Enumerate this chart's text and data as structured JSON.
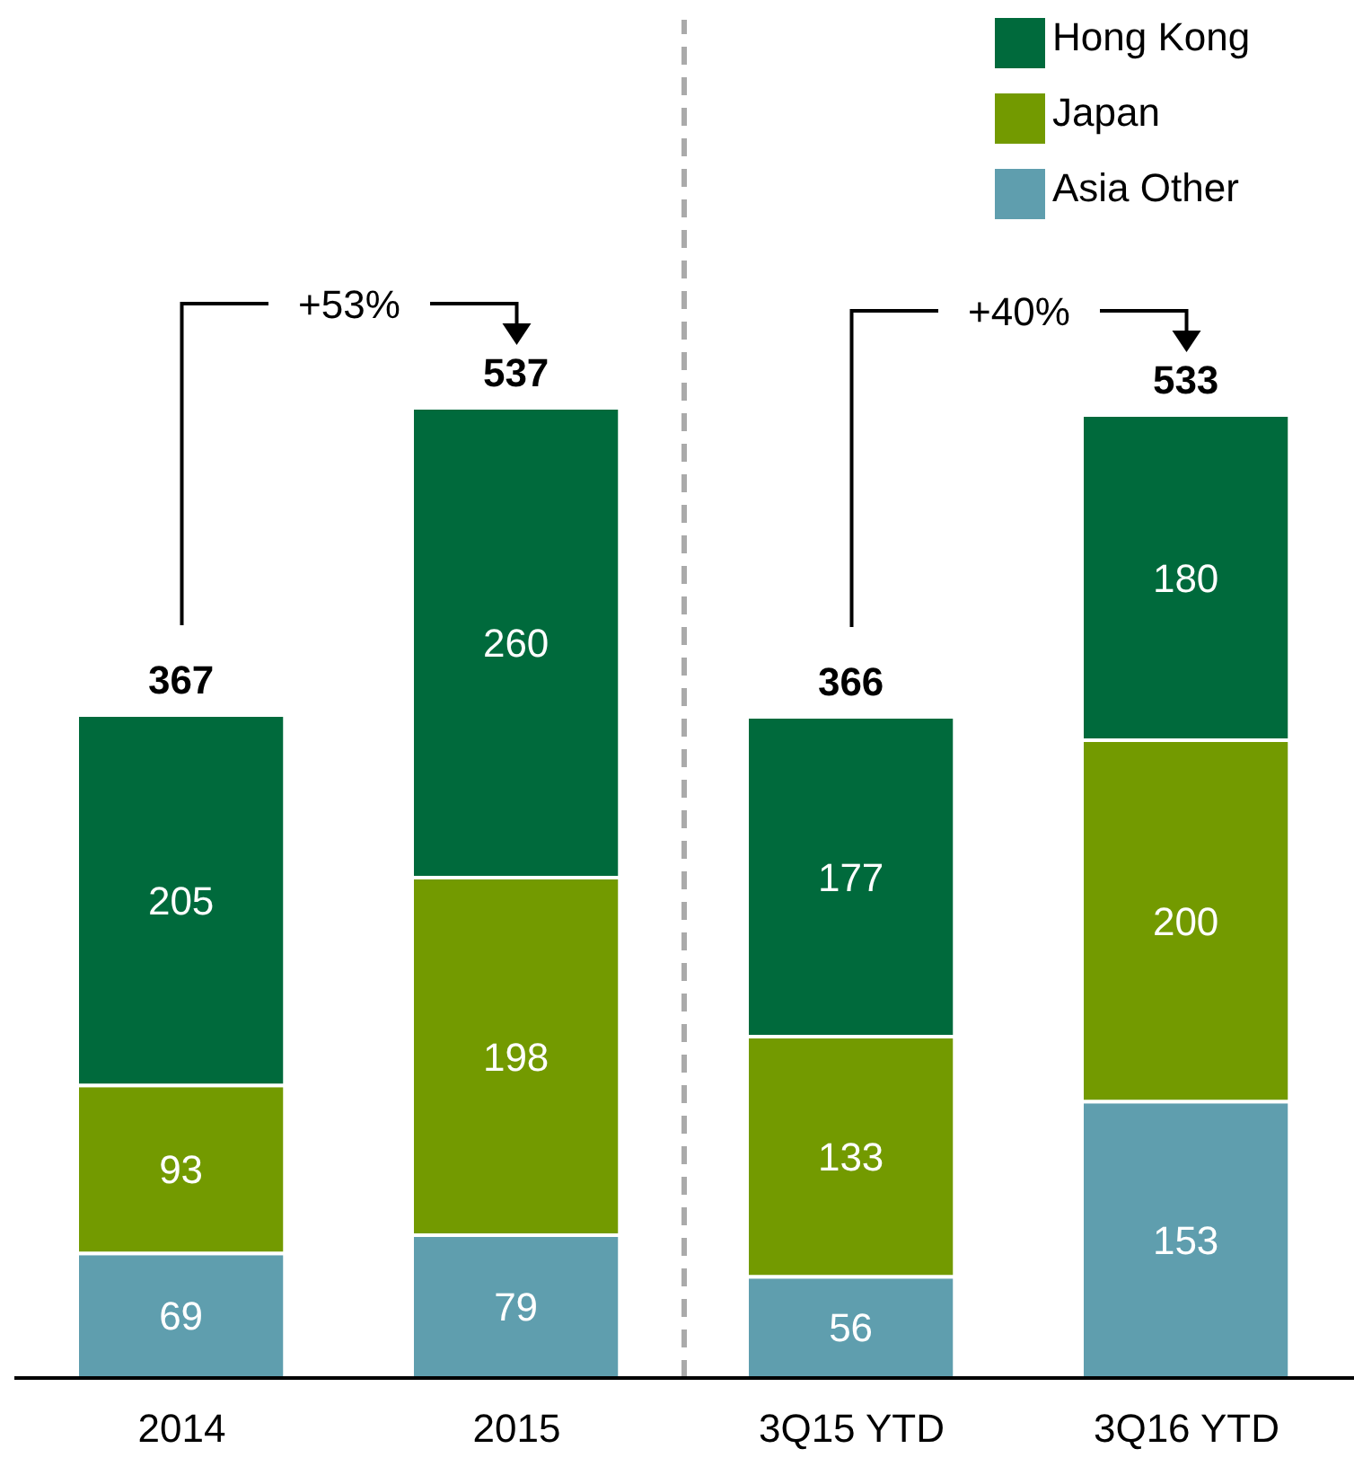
{
  "chart_data": {
    "type": "bar",
    "stacked": true,
    "categories": [
      "2014",
      "2015",
      "3Q15 YTD",
      "3Q16 YTD"
    ],
    "series": [
      {
        "name": "Asia Other",
        "color": "#5f9eae",
        "values": [
          69,
          79,
          56,
          153
        ]
      },
      {
        "name": "Japan",
        "color": "#739a00",
        "values": [
          93,
          198,
          133,
          200
        ]
      },
      {
        "name": "Hong Kong",
        "color": "#006a3c",
        "values": [
          205,
          260,
          177,
          180
        ]
      }
    ],
    "data_labels": true,
    "totals": [
      "367",
      "537",
      "366",
      "533"
    ],
    "legend": "top right",
    "grid": false,
    "annotations": [
      "+53%",
      "+40%"
    ]
  }
}
